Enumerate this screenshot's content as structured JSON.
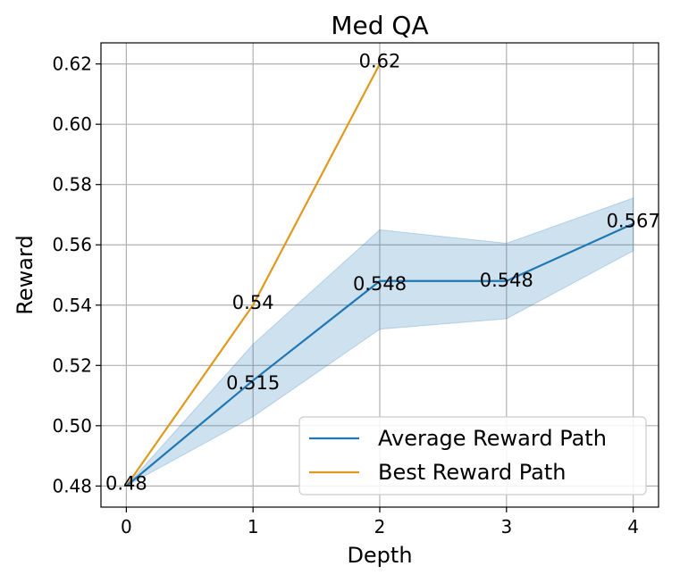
{
  "chart_data": {
    "type": "line",
    "title": "Med QA",
    "xlabel": "Depth",
    "ylabel": "Reward",
    "xlim": [
      -0.2,
      4.2
    ],
    "ylim": [
      0.473,
      0.627
    ],
    "x_ticks": [
      0,
      1,
      2,
      3,
      4
    ],
    "y_ticks": [
      0.48,
      0.5,
      0.52,
      0.54,
      0.56,
      0.58,
      0.6,
      0.62
    ],
    "y_tick_labels": [
      "0.48",
      "0.50",
      "0.52",
      "0.54",
      "0.56",
      "0.58",
      "0.60",
      "0.62"
    ],
    "grid": true,
    "legend_position": "lower-right",
    "series": [
      {
        "name": "Average Reward Path",
        "color": "#1f77b4",
        "x": [
          0,
          1,
          2,
          3,
          4
        ],
        "values": [
          0.48,
          0.515,
          0.548,
          0.548,
          0.567
        ],
        "labels": [
          "0.48",
          "0.515",
          "0.548",
          "0.548",
          "0.567"
        ],
        "band_lower": [
          0.48,
          0.503,
          0.532,
          0.5355,
          0.558
        ],
        "band_upper": [
          0.48,
          0.527,
          0.565,
          0.5605,
          0.5755
        ],
        "band_color": "#1f77b4"
      },
      {
        "name": "Best Reward Path",
        "color": "#e0991f",
        "x": [
          0,
          1,
          2
        ],
        "values": [
          0.48,
          0.54,
          0.62
        ],
        "labels": [
          "",
          "0.54",
          "0.62"
        ]
      }
    ]
  }
}
